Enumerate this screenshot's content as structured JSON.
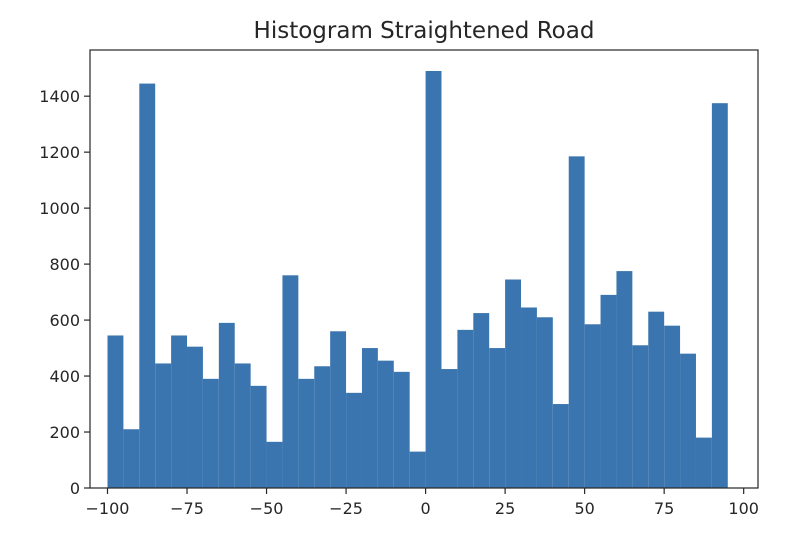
{
  "chart_data": {
    "type": "bar",
    "title": "Histogram Straightened Road",
    "xlabel": "",
    "ylabel": "",
    "xlim": [
      -105.5,
      104.5
    ],
    "ylim": [
      0,
      1565
    ],
    "grid": false,
    "bar_color": "#3b75af",
    "bins": {
      "start": -100,
      "width": 5,
      "counts": [
        545,
        210,
        1445,
        445,
        545,
        505,
        390,
        590,
        445,
        365,
        165,
        760,
        390,
        435,
        560,
        340,
        500,
        455,
        415,
        130,
        1490,
        425,
        565,
        625,
        500,
        745,
        645,
        610,
        300,
        1185,
        585,
        690,
        775,
        510,
        630,
        580,
        480,
        180,
        1375
      ]
    },
    "x_ticks": [
      -100,
      -75,
      -50,
      -25,
      0,
      25,
      50,
      75,
      100
    ],
    "x_tick_labels": [
      "−100",
      "−75",
      "−50",
      "−25",
      "0",
      "25",
      "50",
      "75",
      "100"
    ],
    "y_ticks": [
      0,
      200,
      400,
      600,
      800,
      1000,
      1200,
      1400
    ],
    "y_tick_labels": [
      "0",
      "200",
      "400",
      "600",
      "800",
      "1000",
      "1200",
      "1400"
    ]
  }
}
